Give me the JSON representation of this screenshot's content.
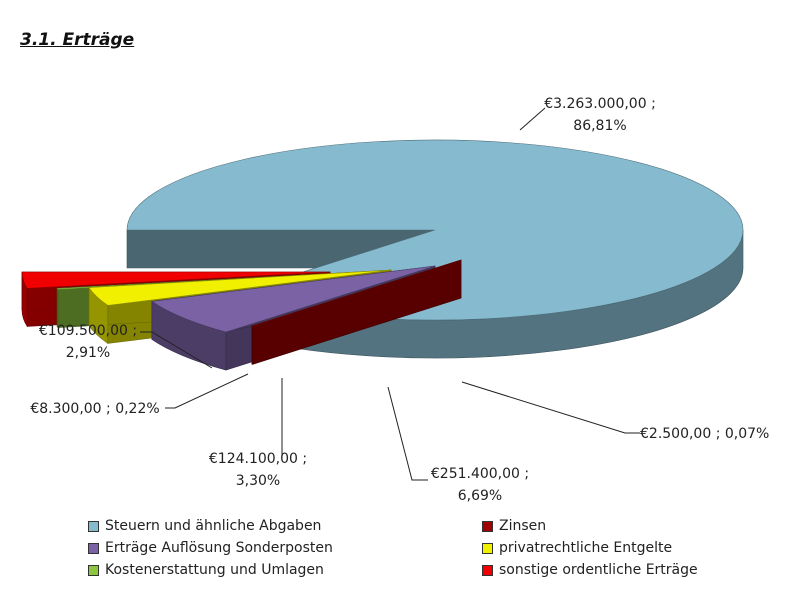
{
  "page": {
    "title": "3.1. Erträge"
  },
  "chart_data": {
    "type": "pie",
    "style": "3d-exploded",
    "title": "",
    "slices": [
      {
        "label": "Steuern und ähnliche Abgaben",
        "value": 3263000.0,
        "percent": 86.81,
        "color": "#86BACE",
        "data_label": [
          "€3.263.000,00 ;",
          "86,81%"
        ]
      },
      {
        "label": "Zinsen",
        "value": 2500.0,
        "percent": 0.07,
        "color": "#A00000",
        "data_label": [
          "€2.500,00 ; 0,07%"
        ]
      },
      {
        "label": "Erträge Auflösung Sonderposten",
        "value": 251400.0,
        "percent": 6.69,
        "color": "#7A62A4",
        "data_label": [
          "€251.400,00 ;",
          "6,69%"
        ]
      },
      {
        "label": "privatrechtliche Entgelte",
        "value": 124100.0,
        "percent": 3.3,
        "color": "#F0F000",
        "data_label": [
          "€124.100,00 ;",
          "3,30%"
        ]
      },
      {
        "label": "Kostenerstattung und Umlagen",
        "value": 8300.0,
        "percent": 0.22,
        "color": "#8CC63E",
        "data_label": [
          "€8.300,00 ; 0,22%"
        ]
      },
      {
        "label": "sonstige ordentliche Erträge",
        "value": 109500.0,
        "percent": 2.91,
        "color": "#F00000",
        "data_label": [
          "€109.500,00 ;",
          "2,91%"
        ]
      }
    ],
    "legend": {
      "placement": "bottom",
      "order": [
        "Steuern und ähnliche Abgaben",
        "Zinsen",
        "Erträge Auflösung Sonderposten",
        "privatrechtliche Entgelte",
        "Kostenerstattung und Umlagen",
        "sonstige ordentliche Erträge"
      ]
    }
  }
}
